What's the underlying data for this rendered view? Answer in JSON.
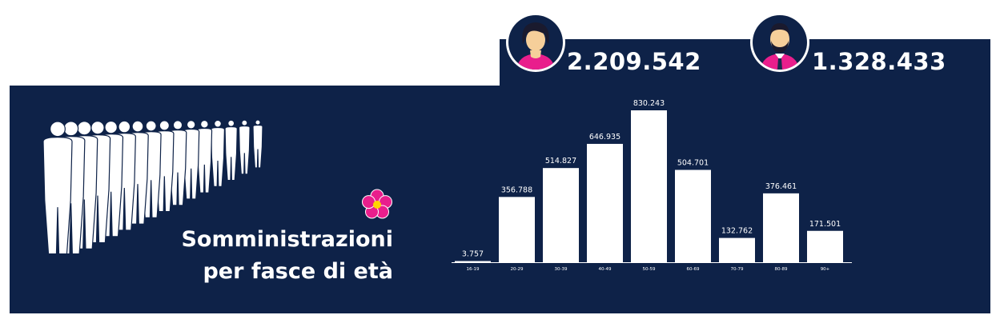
{
  "counts": {
    "female": "2.209.542",
    "male": "1.328.433"
  },
  "title": {
    "line1": "Somministrazioni",
    "line2": "per fasce di età"
  },
  "icons": {
    "female": "woman-avatar-icon",
    "male": "man-avatar-icon",
    "flower": "primrose-flower-icon",
    "crowd": "crowd-silhouette-icon"
  },
  "colors": {
    "panel": "#0e2248",
    "bar": "#ffffff",
    "accent": "#e91e8c",
    "flower_center": "#ffd400"
  },
  "chart_data": {
    "type": "bar",
    "categories": [
      "16-19",
      "20-29",
      "30-39",
      "40-49",
      "50-59",
      "60-69",
      "70-79",
      "80-89",
      "90+"
    ],
    "values": [
      3757,
      356788,
      514827,
      646935,
      830243,
      504701,
      132762,
      376461,
      171501
    ],
    "labels": [
      "3.757",
      "356.788",
      "514.827",
      "646.935",
      "830.243",
      "504.701",
      "132.762",
      "376.461",
      "171.501"
    ],
    "ylim": [
      0,
      830243
    ],
    "grid": false,
    "xlabel": "",
    "ylabel": ""
  }
}
